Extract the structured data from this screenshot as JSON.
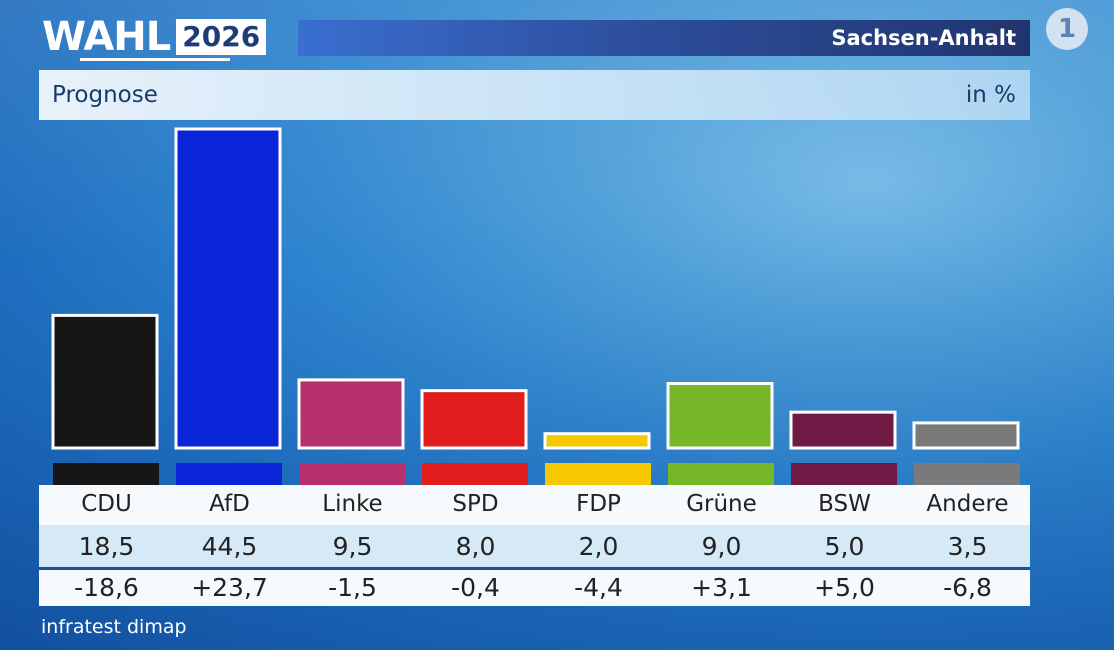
{
  "header": {
    "logo_word": "WAHL",
    "logo_year": "2026",
    "region": "Sachsen-Anhalt",
    "subtitle": "Prognose",
    "unit": "in %"
  },
  "icons": {
    "broadcaster": "ard-logo-icon",
    "broadcaster_glyph": "1"
  },
  "source": "infratest dimap",
  "chart_data": {
    "type": "bar",
    "title": "Prognose",
    "unit": "in %",
    "categories": [
      "CDU",
      "AfD",
      "Linke",
      "SPD",
      "FDP",
      "Grüne",
      "BSW",
      "Andere"
    ],
    "values": [
      18.5,
      44.5,
      9.5,
      8.0,
      2.0,
      9.0,
      5.0,
      3.5
    ],
    "value_labels": [
      "18,5",
      "44,5",
      "9,5",
      "8,0",
      "2,0",
      "9,0",
      "5,0",
      "3,5"
    ],
    "diff_labels": [
      "-18,6",
      "+23,7",
      "-1,5",
      "-0,4",
      "-4,4",
      "+3,1",
      "+5,0",
      "-6,8"
    ],
    "colors": [
      "#161616",
      "#0a25d8",
      "#b5306d",
      "#e11d1d",
      "#f6c800",
      "#76b72a",
      "#6e1a45",
      "#7a7a7a"
    ],
    "ylim": [
      0,
      44.5
    ]
  }
}
